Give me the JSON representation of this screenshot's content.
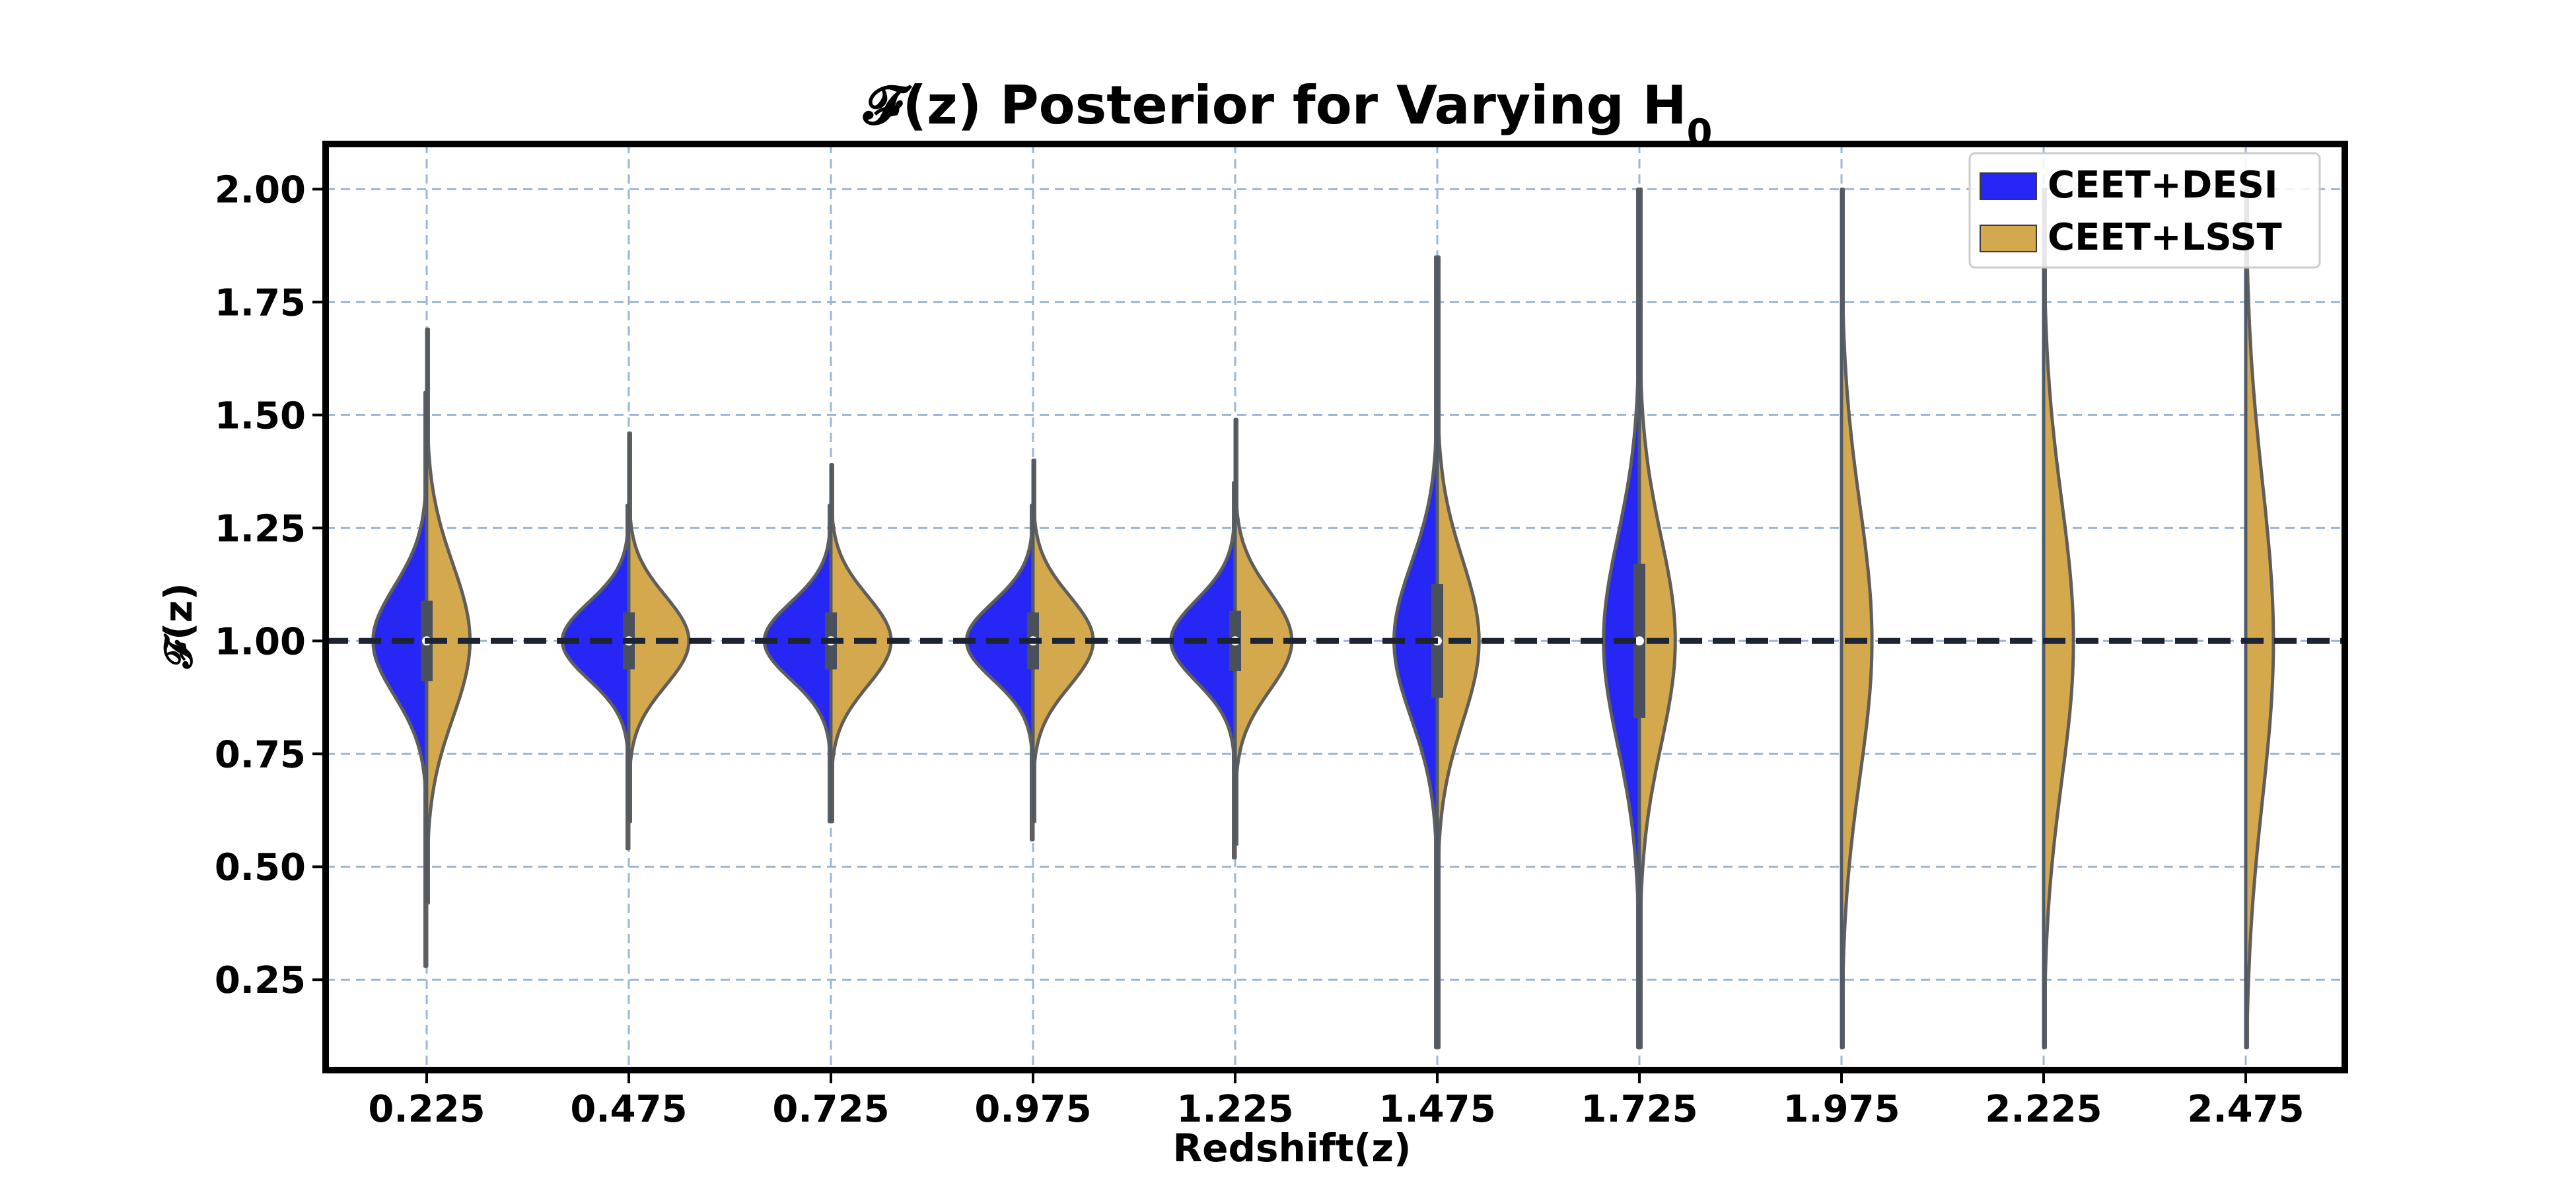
{
  "chart_data": {
    "type": "violin",
    "title": "𝓕(z) Posterior for Varying H",
    "title_subscript": "0",
    "xlabel": "Redshift(z)",
    "ylabel": "𝓕(z)",
    "categories": [
      "0.225",
      "0.475",
      "0.725",
      "0.975",
      "1.225",
      "1.475",
      "1.725",
      "1.975",
      "2.225",
      "2.475"
    ],
    "ylim": [
      0.05,
      2.1
    ],
    "yticks": [
      "0.25",
      "0.50",
      "0.75",
      "1.00",
      "1.25",
      "1.50",
      "1.75",
      "2.00"
    ],
    "reference_line": 1.0,
    "grid": true,
    "legend_position": "top-right",
    "series": [
      {
        "name": "CEET+DESI",
        "color": "#2727f5",
        "side": "left",
        "sigma": [
          0.12,
          0.085,
          0.085,
          0.085,
          0.09,
          0.17,
          0.23,
          null,
          null,
          null
        ],
        "min": [
          0.28,
          0.54,
          0.6,
          0.56,
          0.52,
          0.1,
          0.1,
          null,
          null,
          null
        ],
        "max": [
          1.55,
          1.3,
          1.3,
          1.3,
          1.35,
          1.85,
          2.0,
          null,
          null,
          null
        ]
      },
      {
        "name": "CEET+LSST",
        "color": "#d4a94e",
        "side": "right",
        "sigma": [
          0.17,
          0.1,
          0.1,
          0.1,
          0.11,
          0.18,
          0.23,
          0.3,
          0.31,
          0.35
        ],
        "min": [
          0.42,
          0.6,
          0.6,
          0.6,
          0.55,
          0.1,
          0.1,
          0.1,
          0.1,
          0.1
        ],
        "max": [
          1.69,
          1.46,
          1.39,
          1.4,
          1.49,
          1.85,
          2.0,
          2.0,
          2.0,
          2.0
        ]
      }
    ]
  }
}
